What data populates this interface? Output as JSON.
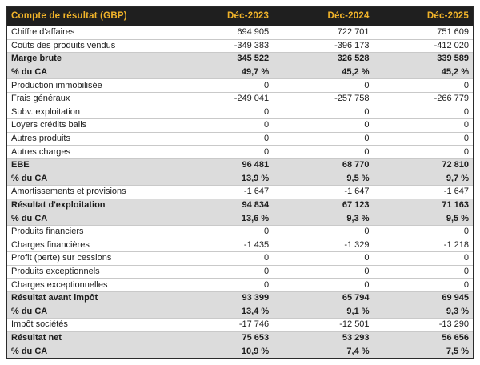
{
  "colors": {
    "header_bg": "#1f1f1f",
    "header_text": "#f0b32a",
    "band_bg": "#dcdcdc",
    "border_dark": "#2b2b2b",
    "row_separator": "#c9c9c9",
    "text_color": "#1c1c1c"
  },
  "table": {
    "columns": [
      "Compte de résultat (GBP)",
      "Déc-2023",
      "Déc-2024",
      "Déc-2025"
    ],
    "rows": [
      {
        "label": "Chiffre d'affaires",
        "values": [
          "694 905",
          "722 701",
          "751 609"
        ],
        "emphasis": false
      },
      {
        "label": "Coûts des produits vendus",
        "values": [
          "-349 383",
          "-396 173",
          "-412 020"
        ],
        "emphasis": false
      },
      {
        "label": "Marge brute",
        "values": [
          "345 522",
          "326 528",
          "339 589"
        ],
        "emphasis": true
      },
      {
        "label": "% du CA",
        "values": [
          "49,7 %",
          "45,2 %",
          "45,2 %"
        ],
        "emphasis": true
      },
      {
        "label": "Production immobilisée",
        "values": [
          "0",
          "0",
          "0"
        ],
        "emphasis": false
      },
      {
        "label": "Frais généraux",
        "values": [
          "-249 041",
          "-257 758",
          "-266 779"
        ],
        "emphasis": false
      },
      {
        "label": "Subv. exploitation",
        "values": [
          "0",
          "0",
          "0"
        ],
        "emphasis": false
      },
      {
        "label": "Loyers crédits bails",
        "values": [
          "0",
          "0",
          "0"
        ],
        "emphasis": false
      },
      {
        "label": "Autres produits",
        "values": [
          "0",
          "0",
          "0"
        ],
        "emphasis": false
      },
      {
        "label": "Autres charges",
        "values": [
          "0",
          "0",
          "0"
        ],
        "emphasis": false
      },
      {
        "label": "EBE",
        "values": [
          "96 481",
          "68 770",
          "72 810"
        ],
        "emphasis": true
      },
      {
        "label": "% du CA",
        "values": [
          "13,9 %",
          "9,5 %",
          "9,7 %"
        ],
        "emphasis": true
      },
      {
        "label": "Amortissements et provisions",
        "values": [
          "-1 647",
          "-1 647",
          "-1 647"
        ],
        "emphasis": false
      },
      {
        "label": "Résultat d'exploitation",
        "values": [
          "94 834",
          "67 123",
          "71 163"
        ],
        "emphasis": true
      },
      {
        "label": "% du CA",
        "values": [
          "13,6 %",
          "9,3 %",
          "9,5 %"
        ],
        "emphasis": true
      },
      {
        "label": "Produits financiers",
        "values": [
          "0",
          "0",
          "0"
        ],
        "emphasis": false
      },
      {
        "label": "Charges financières",
        "values": [
          "-1 435",
          "-1 329",
          "-1 218"
        ],
        "emphasis": false
      },
      {
        "label": "Profit (perte) sur cessions",
        "values": [
          "0",
          "0",
          "0"
        ],
        "emphasis": false
      },
      {
        "label": "Produits exceptionnels",
        "values": [
          "0",
          "0",
          "0"
        ],
        "emphasis": false
      },
      {
        "label": "Charges exceptionnelles",
        "values": [
          "0",
          "0",
          "0"
        ],
        "emphasis": false
      },
      {
        "label": "Résultat avant impôt",
        "values": [
          "93 399",
          "65 794",
          "69 945"
        ],
        "emphasis": true
      },
      {
        "label": "% du CA",
        "values": [
          "13,4 %",
          "9,1 %",
          "9,3 %"
        ],
        "emphasis": true
      },
      {
        "label": "Impôt sociétés",
        "values": [
          "-17 746",
          "-12 501",
          "-13 290"
        ],
        "emphasis": false
      },
      {
        "label": "Résultat net",
        "values": [
          "75 653",
          "53 293",
          "56 656"
        ],
        "emphasis": true
      },
      {
        "label": "% du CA",
        "values": [
          "10,9 %",
          "7,4 %",
          "7,5 %"
        ],
        "emphasis": true
      }
    ]
  }
}
